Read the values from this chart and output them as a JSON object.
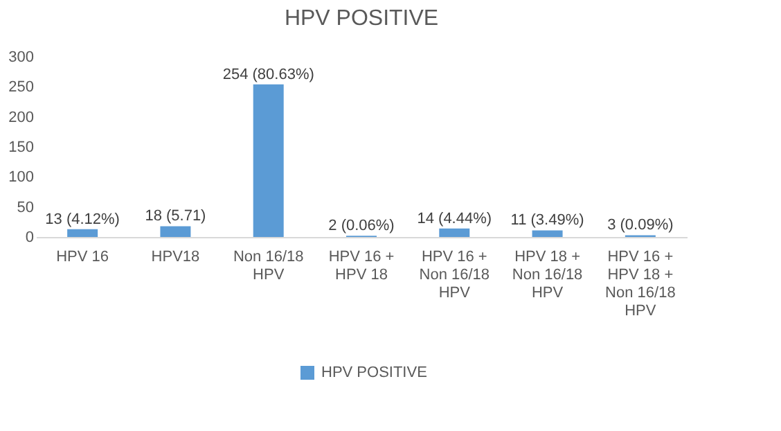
{
  "chart_data": {
    "type": "bar",
    "title": "HPV POSITIVE",
    "categories": [
      "HPV 16",
      "HPV18",
      "Non 16/18 HPV",
      "HPV 16 + HPV 18",
      "HPV 16 + Non 16/18 HPV",
      "HPV 18 + Non 16/18 HPV",
      "HPV 16 + HPV 18 + Non 16/18 HPV"
    ],
    "series": [
      {
        "name": "HPV POSITIVE",
        "color": "#5b9bd5",
        "values": [
          13,
          18,
          254,
          2,
          14,
          11,
          3
        ]
      }
    ],
    "value_labels": [
      "13 (4.12%)",
      "18 (5.71)",
      "254 (80.63%)",
      "2 (0.06%)",
      "14 (4.44%)",
      "11 (3.49%)",
      "3 (0.09%)"
    ],
    "ylim": [
      0,
      300
    ],
    "yticks": [
      0,
      50,
      100,
      150,
      200,
      250,
      300
    ],
    "grid": false,
    "legend": "bottom"
  }
}
